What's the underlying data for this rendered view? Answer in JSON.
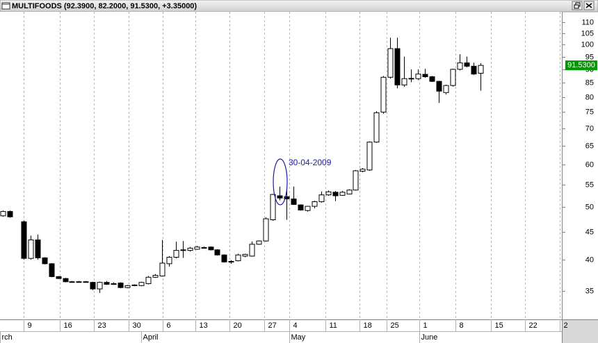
{
  "window_title": "MULTIFOODS (92.3900, 82.2000, 91.5300, +3.35000)",
  "chart_data": {
    "type": "candlestick",
    "annotation": "30-04-2009",
    "last_price": {
      "value": 91.53,
      "label": "91.5300"
    },
    "log_scale": true,
    "xlim": [
      -0.4,
      80.8
    ],
    "ylim": [
      31,
      115
    ],
    "yticks": [
      35,
      40,
      45,
      50,
      55,
      60,
      65,
      70,
      75,
      80,
      85,
      90,
      95,
      100,
      105,
      110
    ],
    "xticks": [
      {
        "value": 3,
        "label": "9"
      },
      {
        "value": 8.2,
        "label": "16"
      },
      {
        "value": 13.2,
        "label": "23"
      },
      {
        "value": 18.2,
        "label": "30"
      },
      {
        "value": 23.1,
        "label": "6"
      },
      {
        "value": 27.8,
        "label": "13"
      },
      {
        "value": 32.8,
        "label": "20"
      },
      {
        "value": 37.8,
        "label": "27"
      },
      {
        "value": 41.4,
        "label": "4"
      },
      {
        "value": 46.6,
        "label": "11"
      },
      {
        "value": 51.6,
        "label": "18"
      },
      {
        "value": 55.5,
        "label": "25"
      },
      {
        "value": 60.2,
        "label": "1"
      },
      {
        "value": 65.4,
        "label": "8"
      },
      {
        "value": 70.5,
        "label": "15"
      },
      {
        "value": 75.5,
        "label": "22"
      },
      {
        "value": 80.5,
        "label": "2"
      }
    ],
    "months": [
      {
        "value": -0.4,
        "label": "rch"
      },
      {
        "value": 20,
        "label": "April"
      },
      {
        "value": 41.4,
        "label": "May"
      },
      {
        "value": 60.2,
        "label": "June"
      }
    ],
    "x": [
      0,
      1,
      3,
      4,
      5,
      6,
      7,
      8,
      9,
      10,
      11,
      12,
      13,
      14,
      15,
      16,
      17,
      18,
      19,
      20,
      21,
      22,
      23,
      24,
      25,
      26,
      27,
      28,
      29,
      30,
      31,
      32,
      33,
      34,
      35,
      36,
      37,
      38,
      39,
      40,
      41,
      42,
      43,
      44,
      45,
      46,
      47,
      48,
      49,
      50,
      51,
      52,
      53,
      54,
      55,
      56,
      57,
      58,
      59,
      60,
      61,
      62,
      63,
      64,
      65,
      66,
      67,
      68,
      69
    ],
    "open": [
      48.2,
      49.1,
      47,
      40.2,
      43.5,
      40.3,
      39.3,
      37.2,
      36.9,
      36.4,
      36.4,
      36.4,
      36.3,
      35.3,
      36.3,
      36,
      36.2,
      35.5,
      35.8,
      35.8,
      36.1,
      37.1,
      37.3,
      39.3,
      40.4,
      41.6,
      41.6,
      41.8,
      42.1,
      42.2,
      41.7,
      40.8,
      39.7,
      39.8,
      40.6,
      40.6,
      42.7,
      43.3,
      47.4,
      52.5,
      52.3,
      51.8,
      50.5,
      49.3,
      50.2,
      51.2,
      52.7,
      53.3,
      52.6,
      52.9,
      53.8,
      58.3,
      58.6,
      66,
      75,
      87,
      98.3,
      84.2,
      86.4,
      86.5,
      88.1,
      87.2,
      85.5,
      81.5,
      84,
      90,
      92.5,
      91.2,
      88.5
    ],
    "high": [
      49.3,
      49.3,
      47.2,
      44.3,
      44.5,
      40.4,
      39.4,
      37.3,
      37,
      36.5,
      36.5,
      36.5,
      36.4,
      36.4,
      36.5,
      36.3,
      36.3,
      35.9,
      36,
      36.4,
      37.3,
      37.6,
      43.5,
      40.6,
      43.2,
      43.3,
      42.2,
      42.4,
      42.3,
      42.3,
      41.8,
      40.9,
      39.9,
      41,
      41,
      43.2,
      43.4,
      47.9,
      52.9,
      54.6,
      54,
      54.6,
      50.6,
      50.3,
      51.4,
      53.5,
      53.7,
      53.6,
      53.6,
      54,
      58.6,
      59.1,
      66.2,
      75.3,
      87.5,
      103,
      103,
      95,
      90,
      90,
      90.2,
      87.5,
      85.7,
      84.3,
      90.2,
      96,
      95,
      92.6,
      92.39
    ],
    "low": [
      48,
      47.8,
      40,
      40,
      40,
      39.2,
      37.1,
      36.8,
      36.3,
      36.3,
      36.3,
      36.3,
      35.1,
      34.7,
      35.9,
      35.9,
      35.4,
      35.4,
      35.7,
      35.7,
      36,
      37,
      37.2,
      38.8,
      40.2,
      40.3,
      41.4,
      41.7,
      41.9,
      41.6,
      40.7,
      39.5,
      39.3,
      39.7,
      40.4,
      40.5,
      42.6,
      43.2,
      47.2,
      51.5,
      47.4,
      50.5,
      49.3,
      49.1,
      49.8,
      51,
      52.5,
      51.3,
      52.5,
      52.8,
      53.7,
      58,
      58.4,
      65.8,
      74.5,
      86.5,
      83,
      83.5,
      85.2,
      86,
      86.8,
      85.3,
      78,
      80.8,
      83.6,
      89.6,
      90.8,
      87.9,
      82.2
    ],
    "close": [
      49.1,
      48,
      40.2,
      43.5,
      40.3,
      39.3,
      37.2,
      36.9,
      36.4,
      36.4,
      36.4,
      36.3,
      35.3,
      36.3,
      36,
      36.1,
      35.5,
      35.8,
      35.9,
      36.3,
      37.1,
      37.4,
      39.4,
      40.4,
      41.6,
      41.7,
      42,
      42.2,
      42,
      41.7,
      40.8,
      39.6,
      39.6,
      40.8,
      40.9,
      42.7,
      43.3,
      47.6,
      52.8,
      52,
      51.8,
      50.6,
      49.4,
      50.2,
      51.2,
      52.7,
      53.4,
      52.5,
      53.3,
      53.8,
      58.4,
      58.8,
      66,
      74.8,
      87,
      98.3,
      84.2,
      86.5,
      86.6,
      88.2,
      87.2,
      85.5,
      82,
      84,
      90,
      92.5,
      91.2,
      88.2,
      91.53
    ]
  }
}
